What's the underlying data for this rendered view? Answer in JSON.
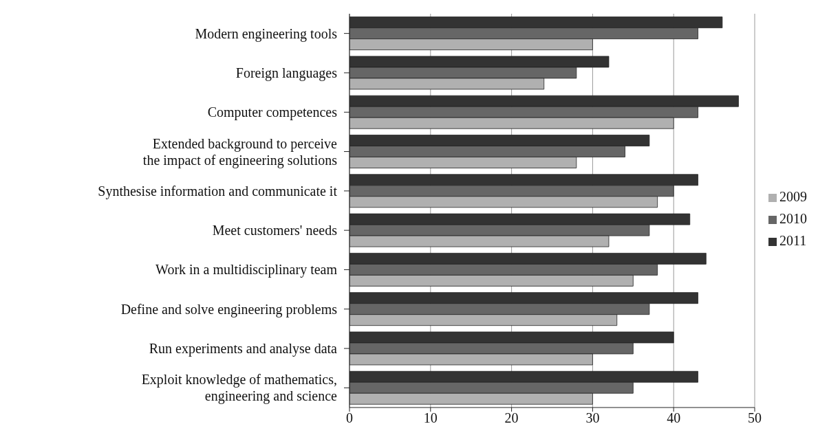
{
  "chart_data": {
    "type": "bar",
    "orientation": "horizontal",
    "categories": [
      "Modern engineering tools",
      "Foreign languages",
      "Computer competences",
      "Extended background to perceive the impact of engineering solutions",
      "Synthesise information and communicate it",
      "Meet customers' needs",
      "Work in a multidisciplinary team",
      "Define and solve engineering problems",
      "Run experiments and analyse data",
      "Exploit knowledge of mathematics, engineering and science"
    ],
    "series": [
      {
        "name": "2011",
        "color": "#333333",
        "values": [
          46,
          32,
          48,
          37,
          43,
          42,
          44,
          43,
          40,
          43
        ]
      },
      {
        "name": "2010",
        "color": "#666666",
        "values": [
          43,
          28,
          43,
          34,
          40,
          37,
          38,
          37,
          35,
          35
        ]
      },
      {
        "name": "2009",
        "color": "#b0b0b0",
        "values": [
          30,
          24,
          40,
          28,
          38,
          32,
          35,
          33,
          30,
          30
        ]
      }
    ],
    "xlim": [
      0,
      50
    ],
    "xticks": [
      0,
      10,
      20,
      30,
      40,
      50
    ],
    "grid": "x",
    "legend": "right"
  }
}
